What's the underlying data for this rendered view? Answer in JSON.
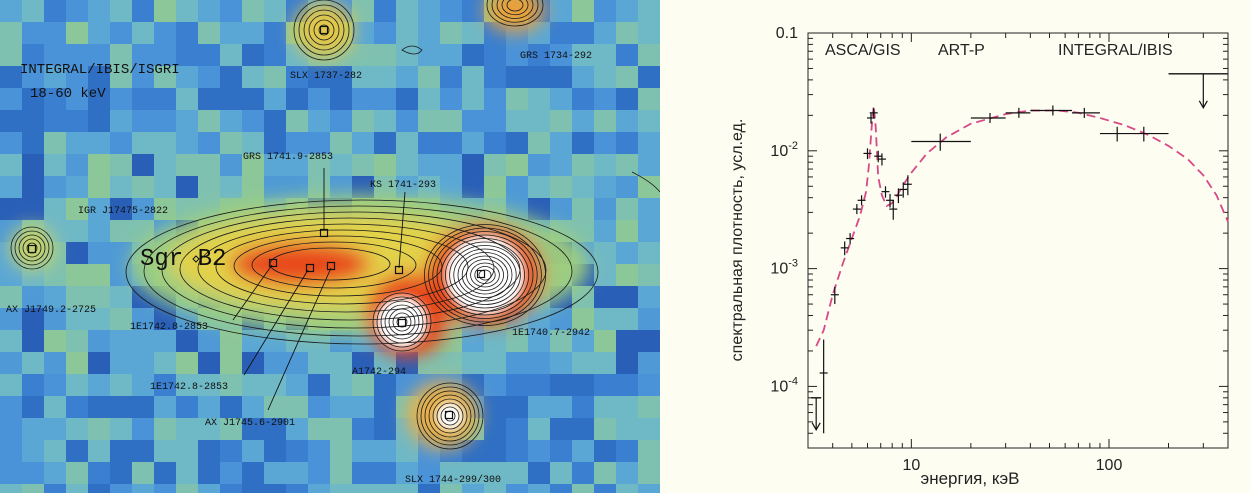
{
  "map": {
    "instrument": "INTEGRAL/IBIS/ISGRI",
    "band": "18-60 keV",
    "region_label": "Sgr B2",
    "sources": [
      {
        "name": "SLX 1737-282"
      },
      {
        "name": "GRS 1734-292"
      },
      {
        "name": "GRS 1741.9-2853"
      },
      {
        "name": "KS 1741-293"
      },
      {
        "name": "IGR J17475-2822"
      },
      {
        "name": "AX J1749.2-2725"
      },
      {
        "name": "1E1742.8-2853"
      },
      {
        "name": "1E1742.8-2853"
      },
      {
        "name": "AX J1745.6-2901"
      },
      {
        "name": "A1742-294"
      },
      {
        "name": "1E1740.7-2942"
      },
      {
        "name": "SLX 1744-299/300"
      }
    ],
    "colors": {
      "background_blue": "#3a78c8",
      "hot": "#e84a1a",
      "core": "#ffffff",
      "contour": "#1a1a1a"
    }
  },
  "chart_data": {
    "type": "scatter",
    "ylabel": "спектральная плотность, усл.ед.",
    "xlabel": "энергия, кэВ",
    "xscale": "log",
    "yscale": "log",
    "xlim": [
      3,
      400
    ],
    "ylim": [
      3e-05,
      0.1
    ],
    "x_ticks": [
      {
        "value": 10,
        "label": "10"
      },
      {
        "value": 100,
        "label": "100"
      }
    ],
    "y_ticks": [
      {
        "value": 0.1,
        "label": "0.1"
      },
      {
        "value": 0.01,
        "label": "10-2"
      },
      {
        "value": 0.001,
        "label": "10-3"
      },
      {
        "value": 0.0001,
        "label": "10-4"
      }
    ],
    "annotations": [
      "ASCA/GIS",
      "ART-P",
      "INTEGRAL/IBIS"
    ],
    "series": [
      {
        "points": [
          {
            "x": 3.6,
            "y": 0.00013,
            "yerr_lo": 9e-05,
            "yerr_hi": 0.00012
          },
          {
            "x": 4.1,
            "y": 0.0006,
            "yerr_lo": 0.0001,
            "yerr_hi": 0.0001
          },
          {
            "x": 4.6,
            "y": 0.0015,
            "yerr_lo": 0.0002,
            "yerr_hi": 0.0002
          },
          {
            "x": 4.9,
            "y": 0.0018,
            "yerr_lo": 0.0002,
            "yerr_hi": 0.0002
          },
          {
            "x": 5.3,
            "y": 0.0032,
            "yerr_lo": 0.0003,
            "yerr_hi": 0.0003
          },
          {
            "x": 5.6,
            "y": 0.0038,
            "yerr_lo": 0.0003,
            "yerr_hi": 0.0003
          },
          {
            "x": 6.0,
            "y": 0.0095,
            "yerr_lo": 0.001,
            "yerr_hi": 0.001
          },
          {
            "x": 6.25,
            "y": 0.019,
            "yerr_lo": 0.002,
            "yerr_hi": 0.002
          },
          {
            "x": 6.45,
            "y": 0.021,
            "yerr_lo": 0.002,
            "yerr_hi": 0.002
          },
          {
            "x": 6.8,
            "y": 0.009,
            "yerr_lo": 0.001,
            "yerr_hi": 0.001
          },
          {
            "x": 7.1,
            "y": 0.0085,
            "yerr_lo": 0.001,
            "yerr_hi": 0.001
          },
          {
            "x": 7.4,
            "y": 0.0045,
            "yerr_lo": 0.0005,
            "yerr_hi": 0.0005
          },
          {
            "x": 7.8,
            "y": 0.0038,
            "yerr_lo": 0.0005,
            "yerr_hi": 0.0005
          },
          {
            "x": 8.1,
            "y": 0.0032,
            "yerr_lo": 0.0006,
            "yerr_hi": 0.0006
          },
          {
            "x": 8.6,
            "y": 0.0042,
            "yerr_lo": 0.0006,
            "yerr_hi": 0.0006
          },
          {
            "x": 9.1,
            "y": 0.0047,
            "yerr_lo": 0.0007,
            "yerr_hi": 0.0007
          },
          {
            "x": 9.6,
            "y": 0.0052,
            "yerr_lo": 0.001,
            "yerr_hi": 0.001
          },
          {
            "x": 14,
            "y": 0.012,
            "xlo": 10,
            "xhi": 20,
            "yerr_lo": 0.002,
            "yerr_hi": 0.002
          },
          {
            "x": 25,
            "y": 0.019,
            "xlo": 20,
            "xhi": 30,
            "yerr_lo": 0.0015,
            "yerr_hi": 0.0015
          },
          {
            "x": 35,
            "y": 0.021,
            "xlo": 30,
            "xhi": 40,
            "yerr_lo": 0.0015,
            "yerr_hi": 0.0015
          },
          {
            "x": 52,
            "y": 0.022,
            "xlo": 40,
            "xhi": 65,
            "yerr_lo": 0.0015,
            "yerr_hi": 0.0015
          },
          {
            "x": 75,
            "y": 0.021,
            "xlo": 65,
            "xhi": 90,
            "yerr_lo": 0.002,
            "yerr_hi": 0.002
          },
          {
            "x": 110,
            "y": 0.014,
            "xlo": 90,
            "xhi": 130,
            "yerr_lo": 0.002,
            "yerr_hi": 0.002
          },
          {
            "x": 150,
            "y": 0.014,
            "xlo": 130,
            "xhi": 200,
            "yerr_lo": 0.002,
            "yerr_hi": 0.002
          }
        ]
      },
      {
        "type": "upper_limit",
        "points": [
          {
            "x": 3.3,
            "y": 8e-05
          },
          {
            "x": 300,
            "y": 0.045,
            "xlo": 200,
            "xhi": 400
          }
        ]
      },
      {
        "type": "line",
        "style": "dashed",
        "color": "#d64a86",
        "x": [
          3.3,
          3.6,
          4.0,
          4.5,
          5.0,
          5.5,
          5.9,
          6.1,
          6.3,
          6.45,
          6.6,
          6.8,
          7.1,
          7.5,
          8.0,
          8.5,
          9.0,
          10,
          12,
          15,
          20,
          30,
          40,
          55,
          70,
          90,
          120,
          160,
          200,
          250,
          300,
          350,
          400
        ],
        "y": [
          0.00022,
          0.0003,
          0.0006,
          0.0011,
          0.0018,
          0.0028,
          0.0045,
          0.0075,
          0.016,
          0.024,
          0.016,
          0.006,
          0.0042,
          0.0034,
          0.0036,
          0.0042,
          0.005,
          0.0065,
          0.0095,
          0.013,
          0.017,
          0.0205,
          0.022,
          0.022,
          0.021,
          0.019,
          0.0165,
          0.0135,
          0.011,
          0.0085,
          0.0062,
          0.0042,
          0.0025
        ]
      }
    ]
  }
}
